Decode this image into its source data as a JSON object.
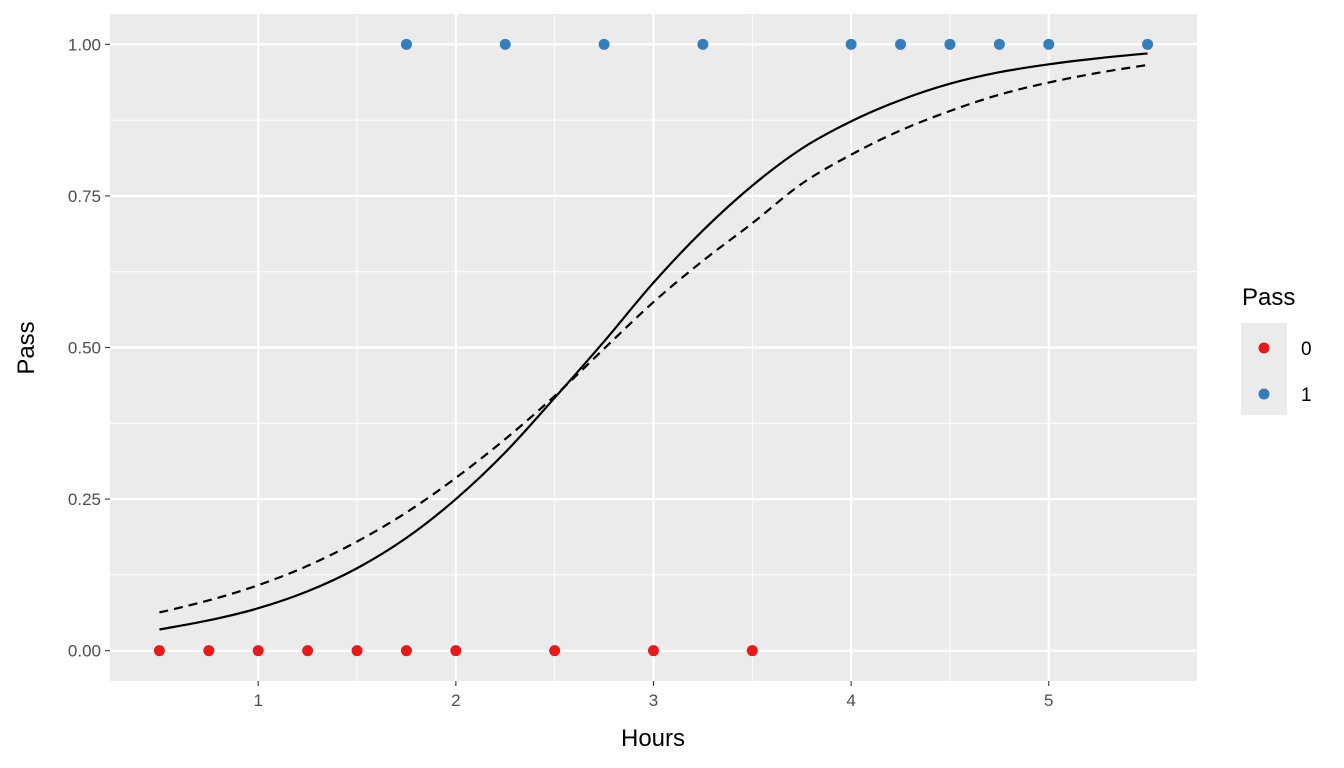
{
  "chart_data": {
    "type": "scatter",
    "xlabel": "Hours",
    "ylabel": "Pass",
    "xlim": [
      0.25,
      5.75
    ],
    "ylim": [
      -0.05,
      1.05
    ],
    "x_ticks": [
      1,
      2,
      3,
      4,
      5
    ],
    "x_tick_labels": [
      "1",
      "2",
      "3",
      "4",
      "5"
    ],
    "y_ticks": [
      0,
      0.25,
      0.5,
      0.75,
      1
    ],
    "y_tick_labels": [
      "0.00",
      "0.25",
      "0.50",
      "0.75",
      "1.00"
    ],
    "grid": true,
    "legend": {
      "title": "Pass",
      "position": "right",
      "entries": [
        {
          "label": "0",
          "color": "#e41a1c"
        },
        {
          "label": "1",
          "color": "#377eb8"
        }
      ]
    },
    "series": [
      {
        "name": "0",
        "color": "#e41a1c",
        "x": [
          0.5,
          0.75,
          1.0,
          1.25,
          1.5,
          1.75,
          2.0,
          2.5,
          3.0,
          3.5
        ],
        "y": [
          0,
          0,
          0,
          0,
          0,
          0,
          0,
          0,
          0,
          0
        ]
      },
      {
        "name": "1",
        "color": "#377eb8",
        "x": [
          1.75,
          2.25,
          2.75,
          3.25,
          4.0,
          4.25,
          4.5,
          4.75,
          5.0,
          5.5
        ],
        "y": [
          1,
          1,
          1,
          1,
          1,
          1,
          1,
          1,
          1,
          1
        ]
      }
    ],
    "lines": [
      {
        "style": "solid",
        "color": "#000000",
        "x": [
          0.5,
          0.75,
          1.0,
          1.25,
          1.5,
          1.75,
          2.0,
          2.25,
          2.5,
          2.75,
          3.0,
          3.25,
          3.5,
          3.75,
          4.0,
          4.25,
          4.5,
          4.75,
          5.0,
          5.25,
          5.5
        ],
        "y": [
          0.035,
          0.05,
          0.07,
          0.098,
          0.136,
          0.186,
          0.25,
          0.327,
          0.417,
          0.51,
          0.607,
          0.693,
          0.767,
          0.828,
          0.873,
          0.908,
          0.935,
          0.954,
          0.967,
          0.977,
          0.985
        ]
      },
      {
        "style": "dashed",
        "color": "#000000",
        "x": [
          0.5,
          0.75,
          1.0,
          1.25,
          1.5,
          1.75,
          2.0,
          2.25,
          2.5,
          2.75,
          3.0,
          3.25,
          3.5,
          3.75,
          4.0,
          4.25,
          4.5,
          4.75,
          5.0,
          5.25,
          5.5
        ],
        "y": [
          0.063,
          0.083,
          0.108,
          0.14,
          0.18,
          0.228,
          0.285,
          0.349,
          0.42,
          0.498,
          0.575,
          0.643,
          0.705,
          0.77,
          0.818,
          0.858,
          0.89,
          0.917,
          0.937,
          0.953,
          0.966
        ]
      }
    ]
  }
}
